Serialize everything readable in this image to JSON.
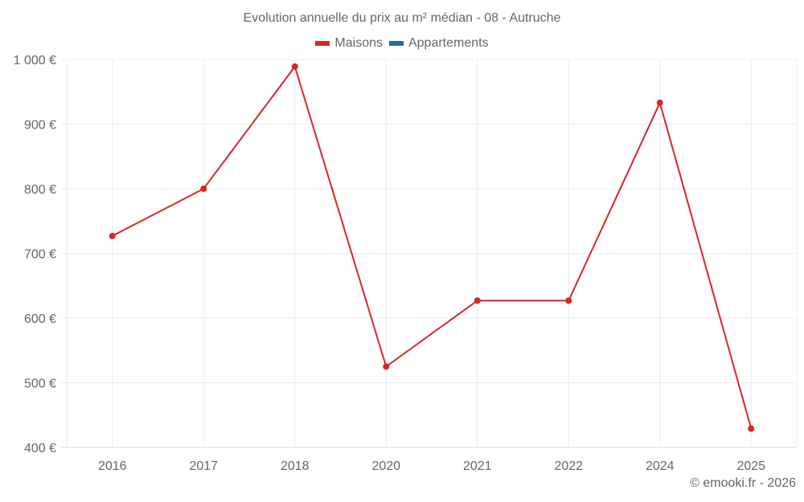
{
  "chart_data": {
    "type": "line",
    "title": "Evolution annuelle du prix au m² médian - 08 - Autruche",
    "categories": [
      "2016",
      "2017",
      "2018",
      "2020",
      "2021",
      "2022",
      "2024",
      "2025"
    ],
    "series": [
      {
        "name": "Maisons",
        "color": "#d62728",
        "values": [
          727,
          800,
          989,
          525,
          627,
          627,
          933,
          429
        ]
      },
      {
        "name": "Appartements",
        "color": "#1f6ea6",
        "values": []
      }
    ],
    "xlabel": "",
    "ylabel": "",
    "ylim": [
      400,
      1000
    ],
    "yticks": [
      400,
      500,
      600,
      700,
      800,
      900,
      1000
    ],
    "ytick_labels": [
      "400 €",
      "500 €",
      "600 €",
      "700 €",
      "800 €",
      "900 €",
      "1 000 €"
    ],
    "grid": true,
    "legend_position": "top"
  },
  "credit": "© emooki.fr - 2026"
}
